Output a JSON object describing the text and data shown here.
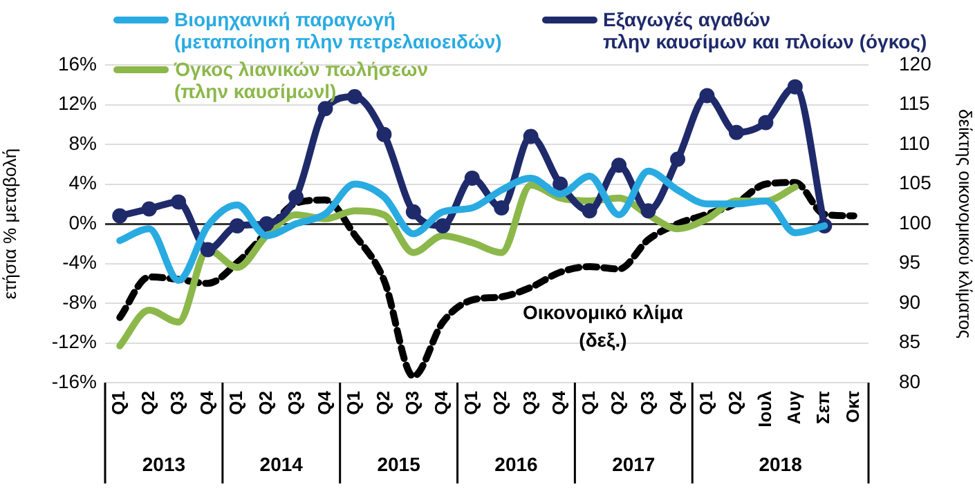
{
  "chart_data": {
    "type": "line",
    "categories": [
      "Q1",
      "Q2",
      "Q3",
      "Q4",
      "Q1",
      "Q2",
      "Q3",
      "Q4",
      "Q1",
      "Q2",
      "Q3",
      "Q4",
      "Q1",
      "Q2",
      "Q3",
      "Q4",
      "Q1",
      "Q2",
      "Q3",
      "Q4",
      "Q1",
      "Q2",
      "Ιουλ",
      "Αυγ",
      "Σεπ",
      "Οκτ"
    ],
    "ylabel": "ετήσια % μεταβολή",
    "y2label": "δείκτης οικονομικού κλίματος",
    "ylim": [
      -16,
      16
    ],
    "yticks": [
      {
        "value": -16,
        "label": "-16%"
      },
      {
        "value": -12,
        "label": "-12%"
      },
      {
        "value": -8,
        "label": "-8%"
      },
      {
        "value": -4,
        "label": "-4%"
      },
      {
        "value": 0,
        "label": "0%"
      },
      {
        "value": 4,
        "label": "4%"
      },
      {
        "value": 8,
        "label": "8%"
      },
      {
        "value": 12,
        "label": "12%"
      },
      {
        "value": 16,
        "label": "16%"
      }
    ],
    "y2lim": [
      80,
      120
    ],
    "y2ticks": [
      80,
      85,
      90,
      95,
      100,
      105,
      110,
      115,
      120
    ],
    "grid": "y",
    "legend": "top",
    "annotations": [
      "Οικονομικό κλίμα\n(δεξ.)",
      "2013",
      "2014",
      "2015",
      "2016",
      "2017",
      "2018"
    ],
    "series": [
      {
        "name": "Βιομηχανική παραγωγή\n(μεταποίηση πλην πετρελαιοειδών)",
        "color": "#29abe2",
        "marker": "none",
        "line_style": "solid",
        "values": [
          -1.7,
          -0.5,
          -5.7,
          -0.2,
          1.9,
          -1.2,
          0,
          1,
          4,
          2.7,
          -1,
          1.2,
          1.6,
          3.4,
          4.6,
          3,
          4.8,
          0.9,
          5.3,
          3.4,
          2,
          2,
          2.3,
          -0.9,
          -0.2,
          null
        ]
      },
      {
        "name": "Εξαγωγές αγαθών\nπλην καυσίμων και πλοίων (όγκος)",
        "color": "#1f2a6b",
        "marker": "circle",
        "line_style": "solid",
        "values": [
          0.8,
          1.5,
          2.2,
          -2.6,
          -0.2,
          0,
          2.7,
          11.6,
          12.8,
          9,
          1.2,
          -0.2,
          4.6,
          1.6,
          8.8,
          4,
          1.3,
          5.9,
          1.3,
          6.5,
          12.9,
          9.2,
          10.2,
          13.8,
          -0.2,
          null
        ]
      },
      {
        "name": "Όγκος λιανικών πωλήσεων\n(πλην καυσίμωνl)",
        "color": "#8cb84b",
        "marker": "none",
        "line_style": "solid",
        "values": [
          -12.3,
          -8.7,
          -9.9,
          -2.6,
          -4.4,
          -1.2,
          0.9,
          0.5,
          1.3,
          0.9,
          -2.9,
          -1.2,
          -1.9,
          -2.9,
          3.9,
          2.6,
          2.3,
          2.6,
          0.9,
          -0.5,
          0.5,
          2.3,
          2.3,
          3.7,
          null,
          null
        ]
      },
      {
        "color": "#000000",
        "axis": "y2",
        "marker": "none",
        "line_style": "dashed",
        "values": [
          88.2,
          93.3,
          93,
          92.5,
          95.1,
          98.9,
          102.6,
          103,
          98.6,
          92.9,
          80.8,
          87.6,
          90.4,
          90.8,
          92,
          93.9,
          94.6,
          94.3,
          98,
          100,
          101.2,
          102.6,
          105,
          105.2,
          101.2,
          101
        ]
      }
    ]
  }
}
